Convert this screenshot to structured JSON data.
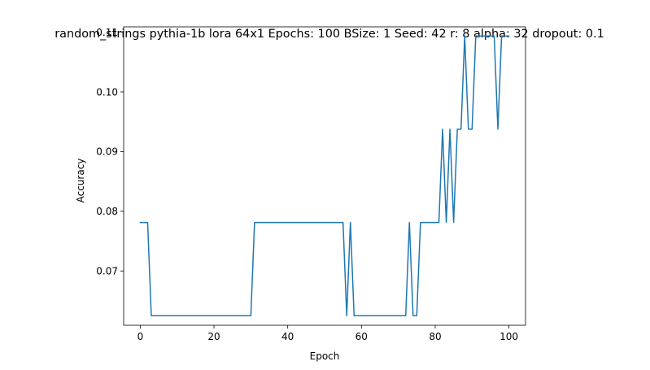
{
  "chart_data": {
    "type": "line",
    "title": "random_strings pythia-1b lora 64x1 Epochs: 100 BSize: 1 Seed: 42 r: 8 alpha: 32 dropout: 0.1",
    "xlabel": "Epoch",
    "ylabel": "Accuracy",
    "xlim": [
      -4.5,
      104.5
    ],
    "ylim": [
      0.0609,
      0.1109
    ],
    "grid": false,
    "x_ticks": [
      {
        "value": 0,
        "label": "0"
      },
      {
        "value": 20,
        "label": "20"
      },
      {
        "value": 40,
        "label": "40"
      },
      {
        "value": 60,
        "label": "60"
      },
      {
        "value": 80,
        "label": "80"
      },
      {
        "value": 100,
        "label": "100"
      }
    ],
    "y_ticks": [
      {
        "value": 0.07,
        "label": "0.07"
      },
      {
        "value": 0.08,
        "label": "0.08"
      },
      {
        "value": 0.09,
        "label": "0.09"
      },
      {
        "value": 0.1,
        "label": "0.10"
      },
      {
        "value": 0.11,
        "label": "0.11"
      }
    ],
    "series": [
      {
        "color": "#1f77b4",
        "x": [
          0,
          1,
          2,
          3,
          4,
          5,
          6,
          7,
          8,
          9,
          10,
          11,
          12,
          13,
          14,
          15,
          16,
          17,
          18,
          19,
          20,
          21,
          22,
          23,
          24,
          25,
          26,
          27,
          28,
          29,
          30,
          31,
          32,
          33,
          34,
          35,
          36,
          37,
          38,
          39,
          40,
          41,
          42,
          43,
          44,
          45,
          46,
          47,
          48,
          49,
          50,
          51,
          52,
          53,
          54,
          55,
          56,
          57,
          58,
          59,
          60,
          61,
          62,
          63,
          64,
          65,
          66,
          67,
          68,
          69,
          70,
          71,
          72,
          73,
          74,
          75,
          76,
          77,
          78,
          79,
          80,
          81,
          82,
          83,
          84,
          85,
          86,
          87,
          88,
          89,
          90,
          91,
          92,
          93,
          94,
          95,
          96,
          97,
          98,
          99,
          100
        ],
        "y": [
          0.078125,
          0.078125,
          0.078125,
          0.0625,
          0.0625,
          0.0625,
          0.0625,
          0.0625,
          0.0625,
          0.0625,
          0.0625,
          0.0625,
          0.0625,
          0.0625,
          0.0625,
          0.0625,
          0.0625,
          0.0625,
          0.0625,
          0.0625,
          0.0625,
          0.0625,
          0.0625,
          0.0625,
          0.0625,
          0.0625,
          0.0625,
          0.0625,
          0.0625,
          0.0625,
          0.0625,
          0.078125,
          0.078125,
          0.078125,
          0.078125,
          0.078125,
          0.078125,
          0.078125,
          0.078125,
          0.078125,
          0.078125,
          0.078125,
          0.078125,
          0.078125,
          0.078125,
          0.078125,
          0.078125,
          0.078125,
          0.078125,
          0.078125,
          0.078125,
          0.078125,
          0.078125,
          0.078125,
          0.078125,
          0.078125,
          0.0625,
          0.078125,
          0.0625,
          0.0625,
          0.0625,
          0.0625,
          0.0625,
          0.0625,
          0.0625,
          0.0625,
          0.0625,
          0.0625,
          0.0625,
          0.0625,
          0.0625,
          0.0625,
          0.0625,
          0.078125,
          0.0625,
          0.0625,
          0.078125,
          0.078125,
          0.078125,
          0.078125,
          0.078125,
          0.078125,
          0.09375,
          0.078125,
          0.09375,
          0.078125,
          0.09375,
          0.09375,
          0.109375,
          0.09375,
          0.09375,
          0.109375,
          0.109375,
          0.109375,
          0.109375,
          0.109375,
          0.109375,
          0.09375,
          0.109375,
          0.109375,
          0.109375
        ]
      }
    ]
  }
}
